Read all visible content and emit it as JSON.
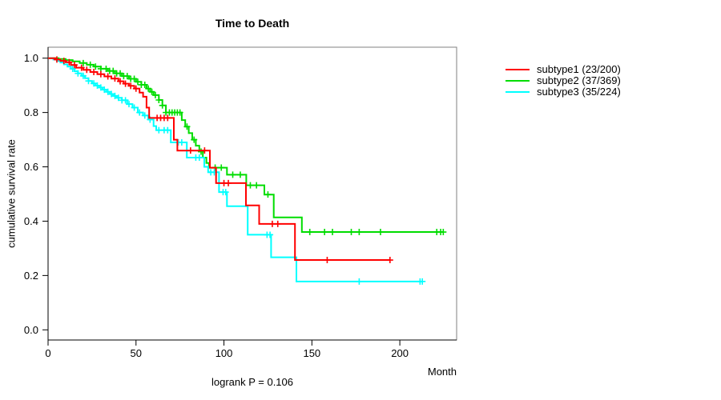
{
  "figure": {
    "title": "Time to Death",
    "annotation": "logrank P = 0.106"
  },
  "chart_data": {
    "type": "line",
    "variant": "kaplan-meier-step",
    "title": "Time to Death",
    "xlabel": "Month",
    "ylabel": "cumulative survival rate",
    "annotation": "logrank P = 0.106",
    "xlim": [
      0,
      232
    ],
    "ylim": [
      0.0,
      1.02
    ],
    "grid": false,
    "legend_position": "right-outside",
    "box_color": "#808080",
    "axis_color": "#000000",
    "xticks": [
      {
        "v": 0,
        "label": "0"
      },
      {
        "v": 50,
        "label": "50"
      },
      {
        "v": 100,
        "label": "100"
      },
      {
        "v": 150,
        "label": "150"
      },
      {
        "v": 200,
        "label": "200"
      }
    ],
    "yticks": [
      {
        "v": 0.0,
        "label": "0.0"
      },
      {
        "v": 0.2,
        "label": "0.2"
      },
      {
        "v": 0.4,
        "label": "0.4"
      },
      {
        "v": 0.6,
        "label": "0.6"
      },
      {
        "v": 0.8,
        "label": "0.8"
      },
      {
        "v": 1.0,
        "label": "1.0"
      }
    ],
    "series": [
      {
        "name": "subtype1 (23/200)",
        "label": "subtype1",
        "events_over_n": "23/200",
        "color": "#ff0000",
        "points": [
          [
            0,
            1.0
          ],
          [
            4,
            0.995
          ],
          [
            7,
            0.99
          ],
          [
            10,
            0.985
          ],
          [
            13,
            0.975
          ],
          [
            16,
            0.965
          ],
          [
            20,
            0.957
          ],
          [
            24,
            0.949
          ],
          [
            28,
            0.941
          ],
          [
            32,
            0.933
          ],
          [
            36,
            0.925
          ],
          [
            40,
            0.915
          ],
          [
            43,
            0.906
          ],
          [
            46,
            0.898
          ],
          [
            49,
            0.888
          ],
          [
            52,
            0.873
          ],
          [
            54,
            0.858
          ],
          [
            56,
            0.818
          ],
          [
            57.5,
            0.78
          ],
          [
            71.5,
            0.7
          ],
          [
            73.5,
            0.66
          ],
          [
            92,
            0.597
          ],
          [
            95.5,
            0.54
          ],
          [
            112.5,
            0.458
          ],
          [
            120,
            0.39
          ],
          [
            140.4,
            0.257
          ],
          [
            194.4,
            0.257
          ]
        ],
        "censor_marks": [
          5,
          9,
          12,
          15,
          19,
          22,
          26,
          30,
          34,
          38,
          41,
          44,
          47,
          50,
          62,
          64,
          66,
          68,
          81,
          89,
          100,
          102.5,
          127.5,
          130.6,
          158.7,
          194.4
        ]
      },
      {
        "name": "subtype2 (37/369)",
        "label": "subtype2",
        "events_over_n": "37/369",
        "color": "#00dd00",
        "points": [
          [
            0,
            1.0
          ],
          [
            6,
            0.997
          ],
          [
            10,
            0.993
          ],
          [
            14,
            0.988
          ],
          [
            18,
            0.982
          ],
          [
            22,
            0.976
          ],
          [
            26,
            0.969
          ],
          [
            30,
            0.961
          ],
          [
            34,
            0.953
          ],
          [
            38,
            0.944
          ],
          [
            42,
            0.934
          ],
          [
            46,
            0.924
          ],
          [
            50,
            0.913
          ],
          [
            53,
            0.902
          ],
          [
            56,
            0.888
          ],
          [
            58,
            0.876
          ],
          [
            60,
            0.864
          ],
          [
            63,
            0.846
          ],
          [
            65,
            0.826
          ],
          [
            67,
            0.8
          ],
          [
            76,
            0.772
          ],
          [
            78,
            0.748
          ],
          [
            80,
            0.724
          ],
          [
            82,
            0.7
          ],
          [
            84,
            0.678
          ],
          [
            86,
            0.656
          ],
          [
            88,
            0.634
          ],
          [
            90,
            0.614
          ],
          [
            91.5,
            0.597
          ],
          [
            101.7,
            0.571
          ],
          [
            112.7,
            0.532
          ],
          [
            123,
            0.498
          ],
          [
            128.3,
            0.414
          ],
          [
            144.3,
            0.36
          ],
          [
            224.7,
            0.36
          ]
        ],
        "censor_marks": [
          20,
          24,
          27,
          30,
          33,
          35,
          37,
          39,
          41,
          43,
          45,
          47,
          49,
          51,
          53,
          55,
          57,
          59,
          61,
          63,
          65,
          67,
          69,
          70.5,
          72,
          73.5,
          75,
          79,
          83,
          87,
          95,
          98.5,
          105,
          109.3,
          115,
          118.5,
          125,
          148.8,
          157.2,
          161.7,
          172.4,
          176.9,
          189,
          221,
          223.2,
          224.7
        ]
      },
      {
        "name": "subtype3 (35/224)",
        "label": "subtype3",
        "events_over_n": "35/224",
        "color": "#00ffff",
        "points": [
          [
            0,
            1.0
          ],
          [
            3,
            0.995
          ],
          [
            5,
            0.99
          ],
          [
            7,
            0.984
          ],
          [
            9,
            0.977
          ],
          [
            11,
            0.969
          ],
          [
            13,
            0.961
          ],
          [
            15,
            0.952
          ],
          [
            17,
            0.944
          ],
          [
            19,
            0.935
          ],
          [
            21,
            0.926
          ],
          [
            23,
            0.916
          ],
          [
            25,
            0.907
          ],
          [
            27,
            0.899
          ],
          [
            29,
            0.892
          ],
          [
            31,
            0.884
          ],
          [
            33,
            0.876
          ],
          [
            35,
            0.868
          ],
          [
            37,
            0.861
          ],
          [
            39,
            0.854
          ],
          [
            42,
            0.845
          ],
          [
            45,
            0.831
          ],
          [
            48,
            0.818
          ],
          [
            51,
            0.8
          ],
          [
            54,
            0.789
          ],
          [
            57,
            0.774
          ],
          [
            60,
            0.75
          ],
          [
            61.5,
            0.735
          ],
          [
            69.8,
            0.69
          ],
          [
            78.9,
            0.634
          ],
          [
            88.8,
            0.6
          ],
          [
            91,
            0.58
          ],
          [
            97.2,
            0.507
          ],
          [
            101.7,
            0.455
          ],
          [
            113.5,
            0.35
          ],
          [
            126.8,
            0.267
          ],
          [
            141.2,
            0.178
          ],
          [
            212.8,
            0.178
          ]
        ],
        "censor_marks": [
          14,
          17,
          20,
          23,
          26,
          28,
          30,
          32,
          34,
          36,
          38,
          40,
          42,
          44,
          46,
          49,
          52,
          55,
          58,
          63,
          66,
          68,
          74,
          76,
          84,
          86,
          92.5,
          94.5,
          99.5,
          101,
          124.5,
          126.2,
          176.9,
          211.5,
          212.8
        ]
      }
    ]
  }
}
